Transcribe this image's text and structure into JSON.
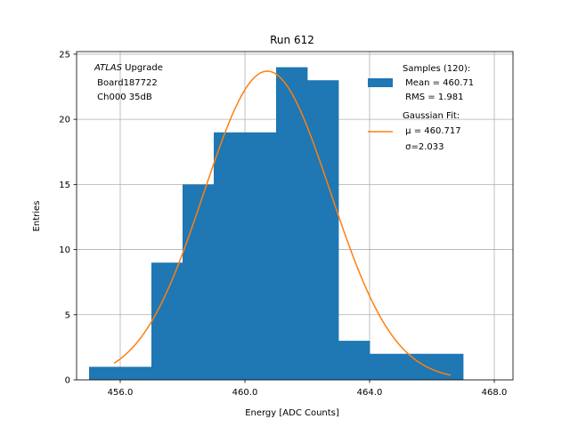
{
  "chart_data": {
    "type": "bar",
    "title": "Run 612",
    "xlabel": "Energy [ADC Counts]",
    "ylabel": "Entries",
    "xlim": [
      454.6,
      468.6
    ],
    "ylim": [
      0,
      25.2
    ],
    "grid": true,
    "x_ticks": [
      456,
      460,
      464,
      468
    ],
    "x_tick_labels": [
      "456.0",
      "460.0",
      "464.0",
      "468.0"
    ],
    "y_ticks": [
      0,
      5,
      10,
      15,
      20,
      25
    ],
    "y_tick_labels": [
      "0",
      "5",
      "10",
      "15",
      "20",
      "25"
    ],
    "histogram": {
      "name": "Samples",
      "color": "#1f77b4",
      "bin_edges": [
        455,
        456,
        457,
        458,
        459,
        460,
        461,
        462,
        463,
        464,
        465,
        466,
        467
      ],
      "counts": [
        1,
        1,
        9,
        15,
        19,
        19,
        24,
        23,
        3,
        2,
        2,
        2
      ]
    },
    "fit": {
      "name": "Gaussian Fit",
      "color": "#ff7f0e",
      "mu": 460.717,
      "sigma": 2.033,
      "amplitude": 23.7,
      "x_range": [
        455.8,
        466.6
      ]
    },
    "annotation": {
      "italic": "ATLAS",
      "rest": " Upgrade",
      "line2": " Board187722",
      "line3": " Ch000 35dB"
    },
    "legend": {
      "position": "top-right",
      "samples_lines": [
        "Samples (120):",
        " Mean = 460.71",
        " RMS = 1.981"
      ],
      "fit_lines": [
        "Gaussian Fit:",
        " μ = 460.717",
        " σ=2.033"
      ]
    }
  }
}
